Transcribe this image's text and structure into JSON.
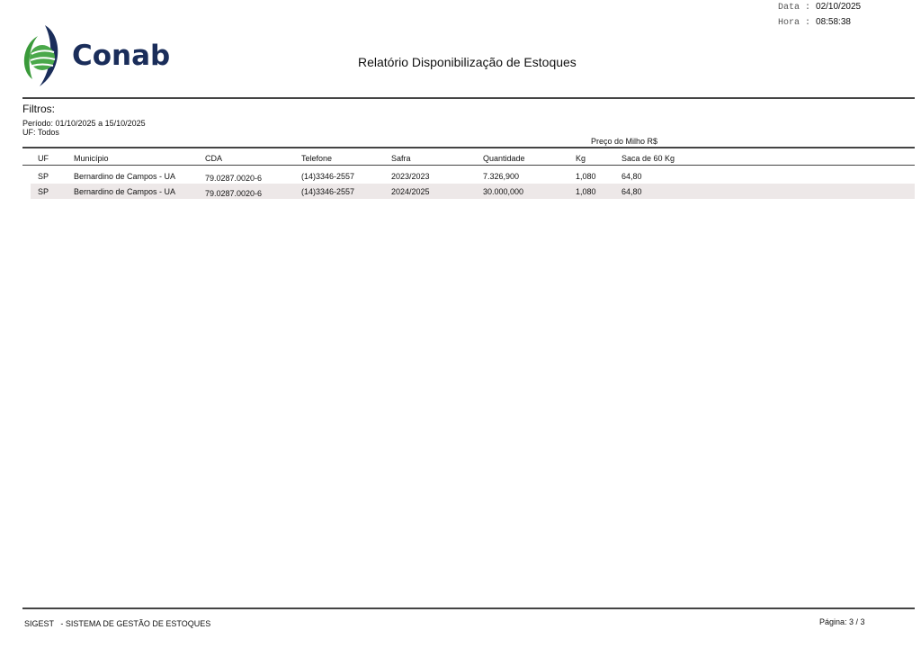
{
  "header": {
    "logo_text": "Conab",
    "title": "Relatório Disponibilização de Estoques",
    "date_label": "Data",
    "date": "02/10/2025",
    "time_label": "Hora",
    "time": "08:58:38"
  },
  "filters": {
    "heading": "Filtros:",
    "period": "Período: 01/10/2025 a 15/10/2025",
    "uf": "UF: Todos"
  },
  "table": {
    "group_header": "Preço do Milho R$",
    "columns": [
      "UF",
      "Município",
      "CDA",
      "Telefone",
      "Safra",
      "Quantidade",
      "Kg",
      "Saca de 60 Kg"
    ],
    "rows": [
      [
        "SP",
        "Bernardino de Campos - UA",
        "79.0287.0020-6",
        "(14)3346-2557",
        "2023/2023",
        "7.326,900",
        "1,080",
        "64,80"
      ],
      [
        "SP",
        "Bernardino de Campos - UA",
        "79.0287.0020-6",
        "(14)3346-2557",
        "2024/2025",
        "30.000,000",
        "1,080",
        "64,80"
      ]
    ]
  },
  "footer": {
    "system": "SIGEST   - SISTEMA DE GESTÃO DE ESTOQUES",
    "page": "Página: 3 / 3"
  },
  "colors": {
    "logo_blue": "#1a2d5a",
    "logo_green": "#3a9a3a",
    "row_shade": "#ede8e8"
  }
}
